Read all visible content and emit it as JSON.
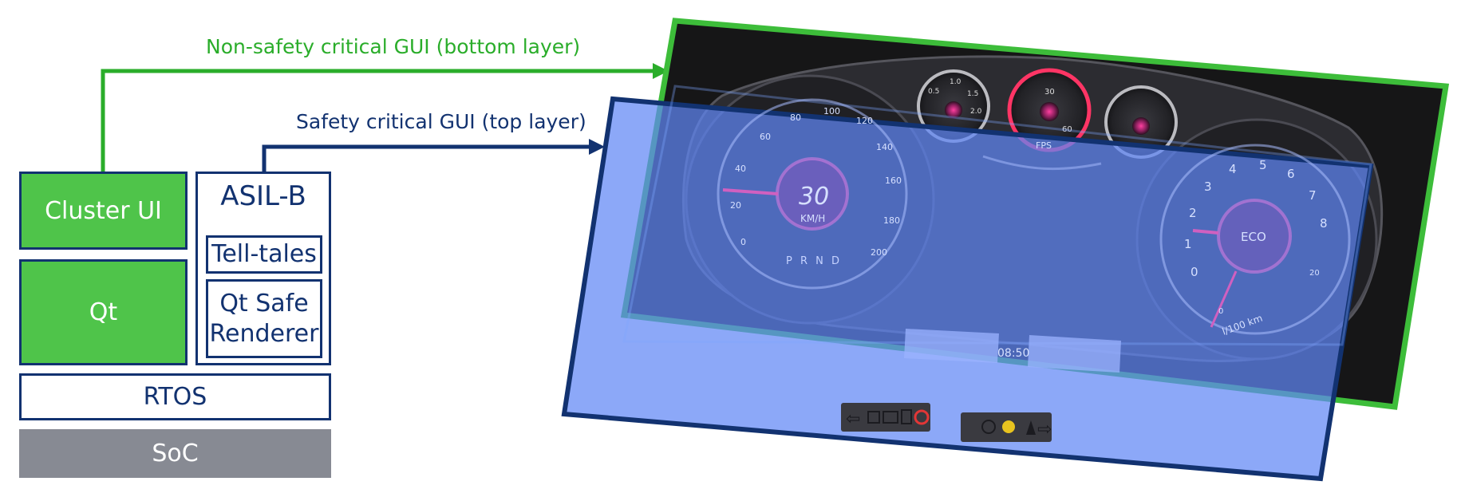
{
  "labels": {
    "nonsafety": "Non-safety critical GUI (bottom layer)",
    "safety": "Safety critical GUI (top layer)"
  },
  "stack": {
    "cluster_ui": "Cluster UI",
    "qt": "Qt",
    "asil": "ASIL-B",
    "telltales": "Tell-tales",
    "qt_safe_line1": "Qt Safe",
    "qt_safe_line2": "Renderer",
    "rtos": "RTOS",
    "soc": "SoC"
  },
  "colors": {
    "green": "#4fc44a",
    "arrow_green": "#2aad2a",
    "navy": "#123270",
    "gray": "#878a93",
    "overlay_blue": "#5f86f5"
  },
  "dashboard": {
    "speed": "30",
    "speed_unit": "KM/H",
    "gears": "P R N D",
    "eco": "ECO",
    "consumption_unit": "l/100 km",
    "fps": "FPS",
    "clock": "08:50",
    "left_ticks": [
      "0",
      "20",
      "40",
      "60",
      "80",
      "100",
      "120",
      "140",
      "160",
      "180",
      "200"
    ],
    "right_ticks": [
      "0",
      "1",
      "2",
      "3",
      "4",
      "5",
      "6",
      "7",
      "8"
    ],
    "right_small": [
      "0",
      "20"
    ],
    "mini_gauge_1": [
      "0.5",
      "1.0",
      "1.5",
      "2.0"
    ],
    "mini_gauge_2": [
      "30",
      "60"
    ]
  }
}
